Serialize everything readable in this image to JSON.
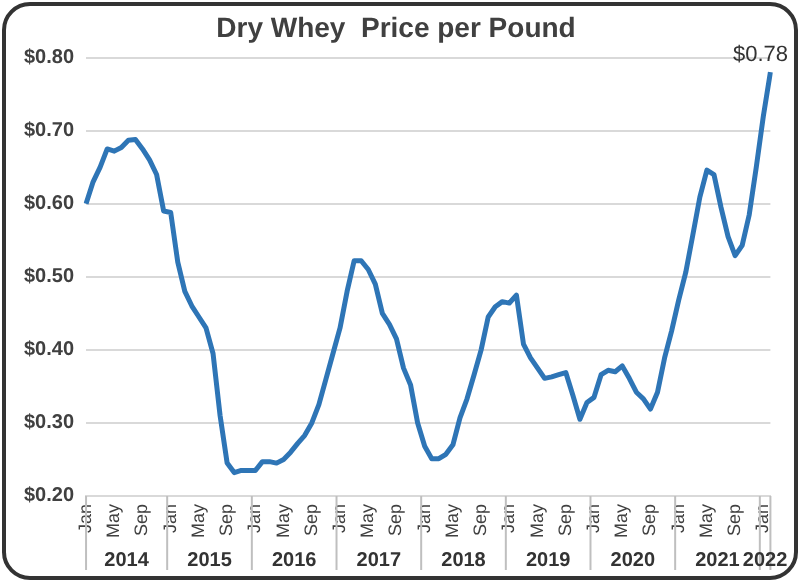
{
  "chart_data": {
    "type": "line",
    "title": "Dry Whey  Price per Pound",
    "categories": [
      "Jan",
      null,
      null,
      null,
      "May",
      null,
      null,
      null,
      "Sep",
      null,
      null,
      null,
      "Jan",
      null,
      null,
      null,
      "May",
      null,
      null,
      null,
      "Sep",
      null,
      null,
      null,
      "Jan",
      null,
      null,
      null,
      "May",
      null,
      null,
      null,
      "Sep",
      null,
      null,
      null,
      "Jan",
      null,
      null,
      null,
      "May",
      null,
      null,
      null,
      "Sep",
      null,
      null,
      null,
      "Jan",
      null,
      null,
      null,
      "May",
      null,
      null,
      null,
      "Sep",
      null,
      null,
      null,
      "Jan",
      null,
      null,
      null,
      "May",
      null,
      null,
      null,
      "Sep",
      null,
      null,
      null,
      "Jan",
      null,
      null,
      null,
      "May",
      null,
      null,
      null,
      "Sep",
      null,
      null,
      null,
      "Jan",
      null,
      null,
      null,
      "May",
      null,
      null,
      null,
      "Sep",
      null,
      null,
      null,
      "Jan",
      null
    ],
    "series": [
      {
        "color": "#2e75b6",
        "values": [
          0.6,
          0.63,
          0.65,
          0.675,
          0.672,
          0.677,
          0.687,
          0.688,
          0.675,
          0.66,
          0.64,
          0.59,
          0.588,
          0.52,
          0.48,
          0.46,
          0.445,
          0.43,
          0.395,
          0.31,
          0.245,
          0.232,
          0.235,
          0.235,
          0.235,
          0.247,
          0.247,
          0.245,
          0.25,
          0.26,
          0.272,
          0.283,
          0.3,
          0.325,
          0.36,
          0.395,
          0.43,
          0.48,
          0.522,
          0.522,
          0.51,
          0.49,
          0.45,
          0.435,
          0.415,
          0.375,
          0.352,
          0.3,
          0.268,
          0.251,
          0.251,
          0.257,
          0.27,
          0.307,
          0.333,
          0.366,
          0.4,
          0.445,
          0.459,
          0.466,
          0.464,
          0.475,
          0.408,
          0.389,
          0.375,
          0.361,
          0.363,
          0.366,
          0.369,
          0.338,
          0.305,
          0.328,
          0.335,
          0.366,
          0.372,
          0.37,
          0.378,
          0.361,
          0.342,
          0.333,
          0.319,
          0.342,
          0.389,
          0.426,
          0.468,
          0.506,
          0.557,
          0.609,
          0.646,
          0.64,
          0.595,
          0.555,
          0.529,
          0.543,
          0.585,
          0.65,
          0.72,
          0.78
        ]
      }
    ],
    "ylim": [
      0.2,
      0.8
    ],
    "yticks": [
      {
        "value": 0.2,
        "label": "$0.20"
      },
      {
        "value": 0.3,
        "label": "$0.30"
      },
      {
        "value": 0.4,
        "label": "$0.40"
      },
      {
        "value": 0.5,
        "label": "$0.50"
      },
      {
        "value": 0.6,
        "label": "$0.60"
      },
      {
        "value": 0.7,
        "label": "$0.70"
      },
      {
        "value": 0.8,
        "label": "$0.80"
      }
    ],
    "grid": "y",
    "legend": false,
    "marker": "none",
    "line_style": "solid",
    "annotations": [
      {
        "text": "$0.78",
        "y": 0.78
      },
      "2014",
      "2015",
      "2016",
      "2017",
      "2018",
      "2019",
      "2020",
      "2021",
      "2022"
    ]
  }
}
